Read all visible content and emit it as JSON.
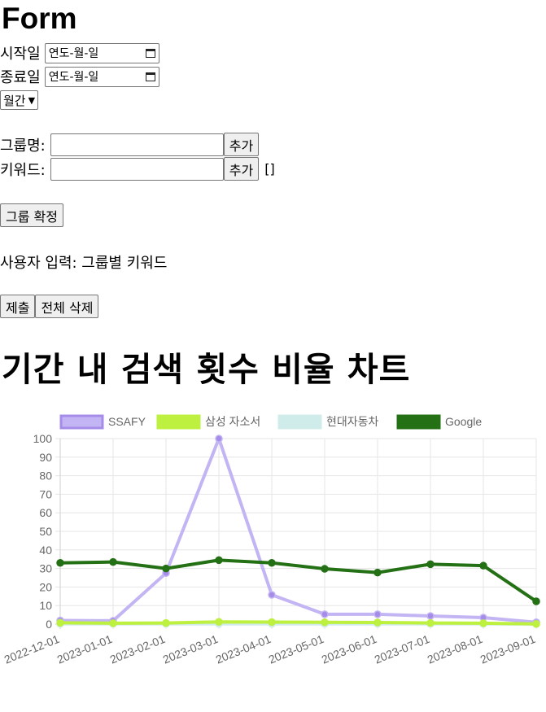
{
  "form_title": "Form",
  "start": {
    "label": "시작일",
    "placeholder": "연도-월-일"
  },
  "end": {
    "label": "종료일",
    "placeholder": "연도-월-일"
  },
  "period_select": "월간",
  "group": {
    "label": "그룹명:",
    "add_button": "추가"
  },
  "keyword": {
    "label": "키워드:",
    "add_button": "추가",
    "list_value": "[]"
  },
  "confirm_group_button": "그룹 확정",
  "user_input_text": "사용자 입력: 그룹별 키워드",
  "submit_button": "제출",
  "delete_all_button": "전체 삭제",
  "chart_heading": "기간 내 검색 횟수 비율 차트",
  "chart_data": {
    "type": "line",
    "x": [
      "2022-12-01",
      "2023-01-01",
      "2023-02-01",
      "2023-03-01",
      "2023-04-01",
      "2023-05-01",
      "2023-06-01",
      "2023-07-01",
      "2023-08-01",
      "2023-09-01"
    ],
    "ylim": [
      0,
      100
    ],
    "yticks": [
      0,
      10,
      20,
      30,
      40,
      50,
      60,
      70,
      80,
      90,
      100
    ],
    "grid": true,
    "legend": "top",
    "series": [
      {
        "name": "SSAFY",
        "color": "#c3b4f3",
        "values": [
          2,
          1.8,
          27.5,
          100,
          15.8,
          5.3,
          5.3,
          4.4,
          3.5,
          1
        ]
      },
      {
        "name": "삼성 자소서",
        "color": "#bdf03f",
        "values": [
          0.7,
          0.5,
          0.6,
          1.2,
          1.1,
          1,
          0.9,
          0.6,
          0.5,
          0.1
        ]
      },
      {
        "name": "현대자동차",
        "color": "#d0ecea",
        "values": [
          0.1,
          0.1,
          0.1,
          0.1,
          0.1,
          0.1,
          0.1,
          0.1,
          0.1,
          0
        ]
      },
      {
        "name": "Google",
        "color": "#247015",
        "values": [
          33,
          33.5,
          30,
          34.5,
          33,
          29.8,
          27.8,
          32.3,
          31.5,
          12.3
        ]
      }
    ]
  }
}
